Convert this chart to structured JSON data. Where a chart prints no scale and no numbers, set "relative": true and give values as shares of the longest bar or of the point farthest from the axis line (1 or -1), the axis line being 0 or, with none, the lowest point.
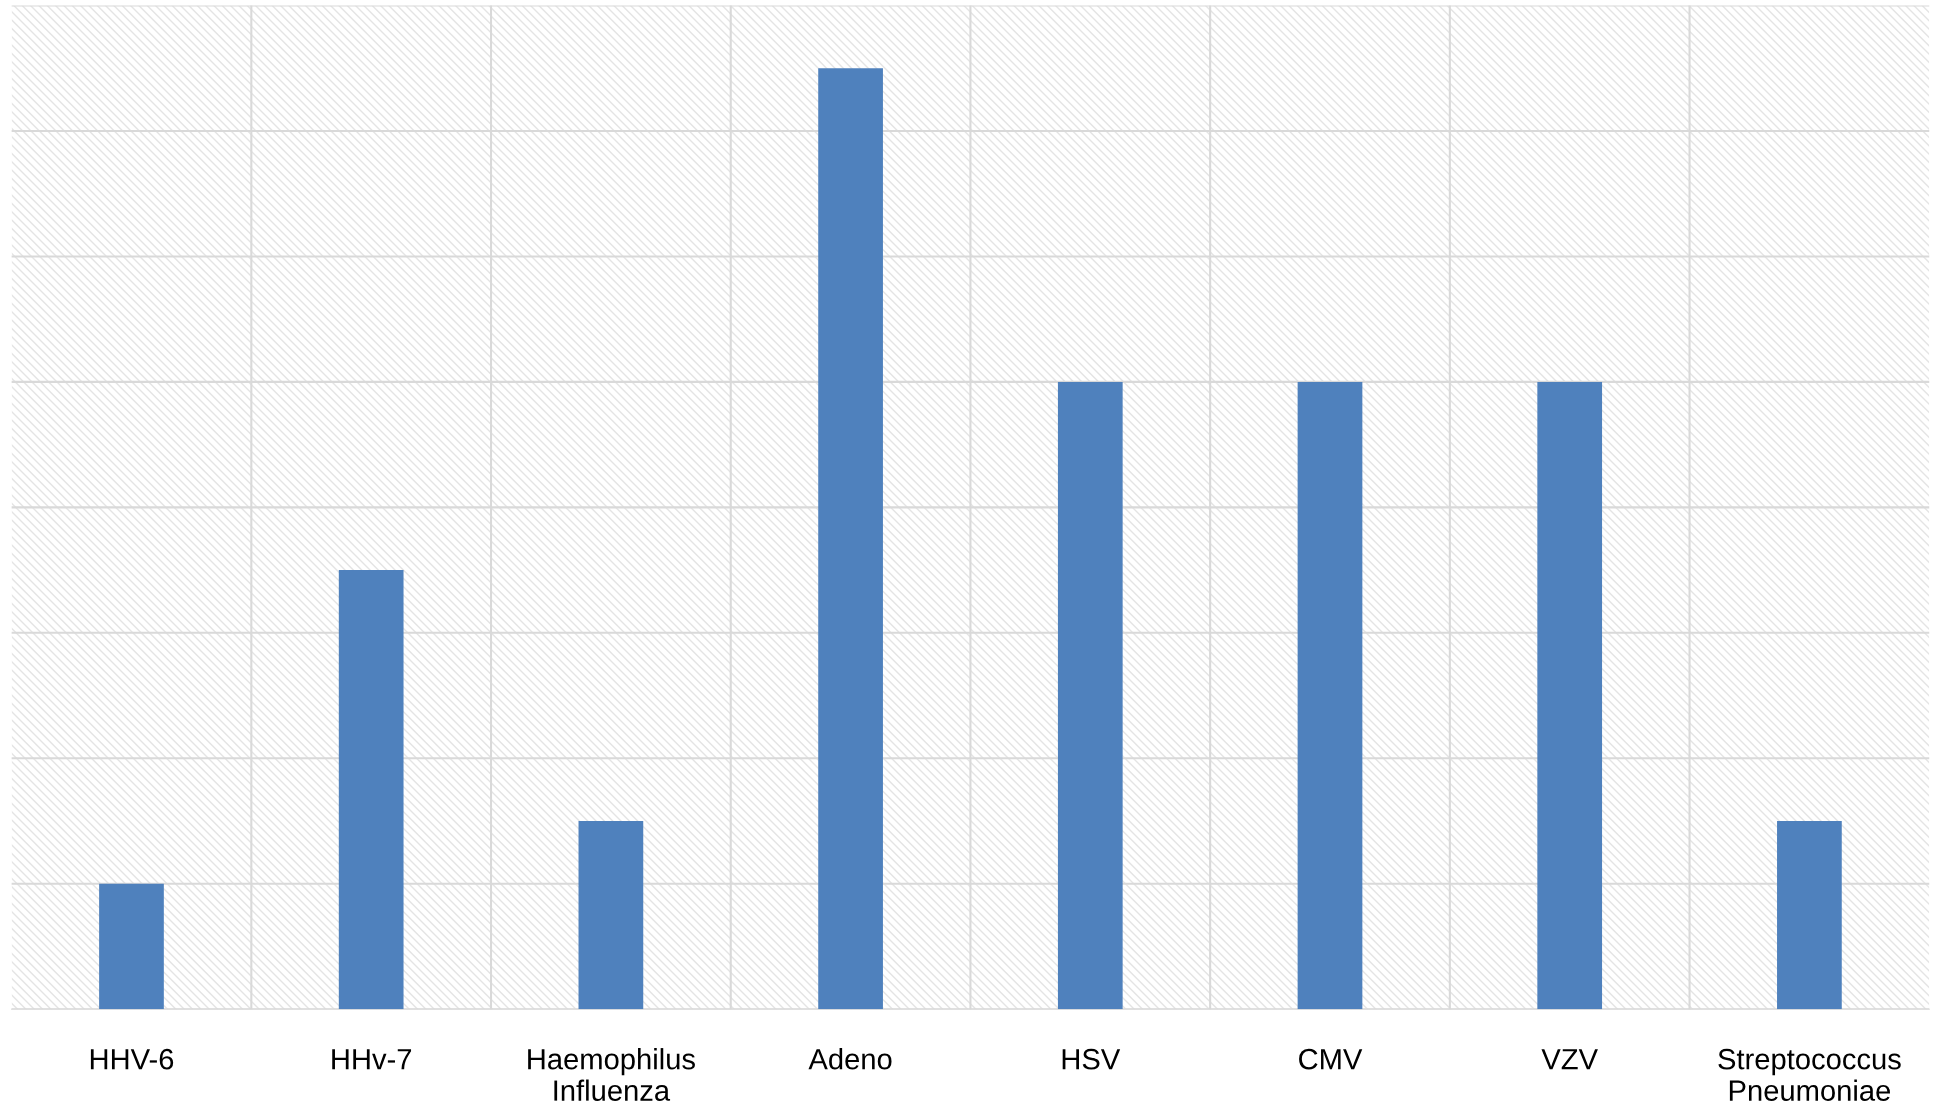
{
  "chart_data": {
    "type": "bar",
    "relative": true,
    "categories": [
      "HHV-6",
      "HHv-7",
      "Haemophilus\nInfluenza",
      "Adeno",
      "HSV",
      "CMV",
      "VZV",
      "Streptococcus\nPneumoniae"
    ],
    "values": [
      0.1333,
      0.4667,
      0.2,
      1,
      0.6667,
      0.6667,
      0.6667,
      0.2
    ],
    "color": "#4f81bd",
    "grid": true
  }
}
